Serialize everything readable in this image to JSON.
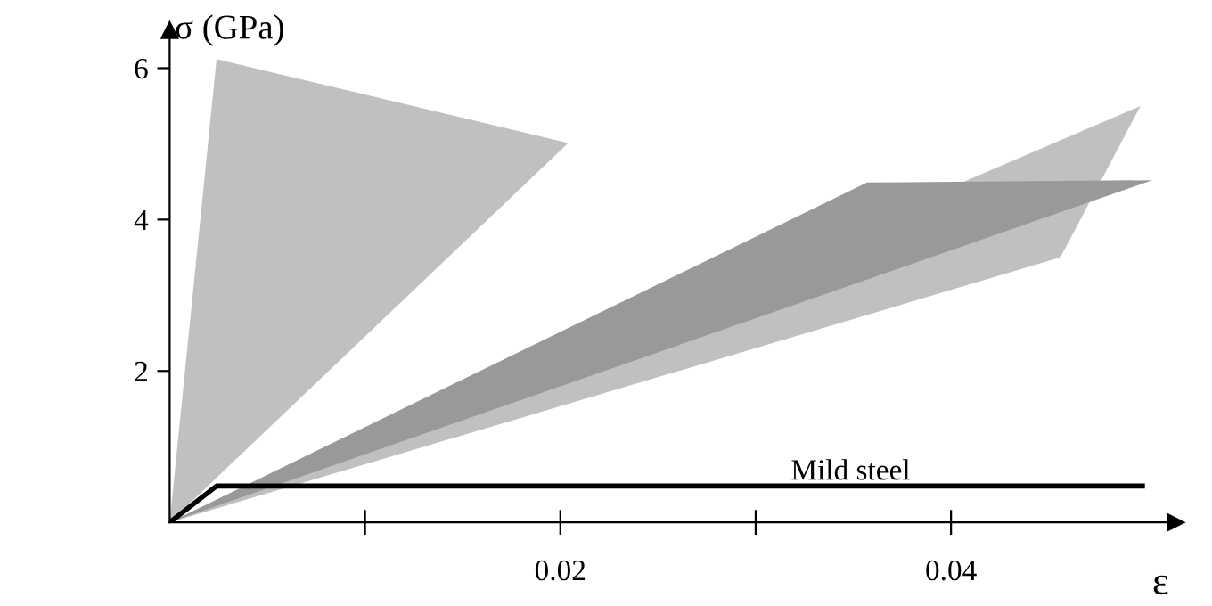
{
  "chart_data": {
    "type": "area",
    "xlabel": "ε",
    "ylabel": "σ (GPa)",
    "xlim": [
      0,
      0.0515
    ],
    "ylim": [
      0,
      6.5
    ],
    "xticks": [
      {
        "value": 0.01,
        "label": null
      },
      0.02,
      {
        "value": 0.03,
        "label": null
      },
      0.04
    ],
    "yticks": [
      2,
      4,
      6
    ],
    "grid": false,
    "legend": false,
    "series": [
      {
        "color": "#c0c0c0",
        "x": [
          0,
          0.0024,
          0.0204
        ],
        "values": [
          0,
          6.12,
          5.01
        ]
      },
      {
        "color": "#c0c0c0",
        "x": [
          0,
          0.0497,
          0.0456
        ],
        "values": [
          0,
          5.5,
          3.5
        ]
      },
      {
        "color": "#999999",
        "x": [
          0,
          0.0357,
          0.0503
        ],
        "values": [
          0,
          4.49,
          4.52
        ]
      },
      {
        "type": "line",
        "name": "Mild steel",
        "color": "#000000",
        "x": [
          0,
          0.0024,
          0.0498
        ],
        "values": [
          0,
          0.48,
          0.48
        ]
      }
    ]
  }
}
